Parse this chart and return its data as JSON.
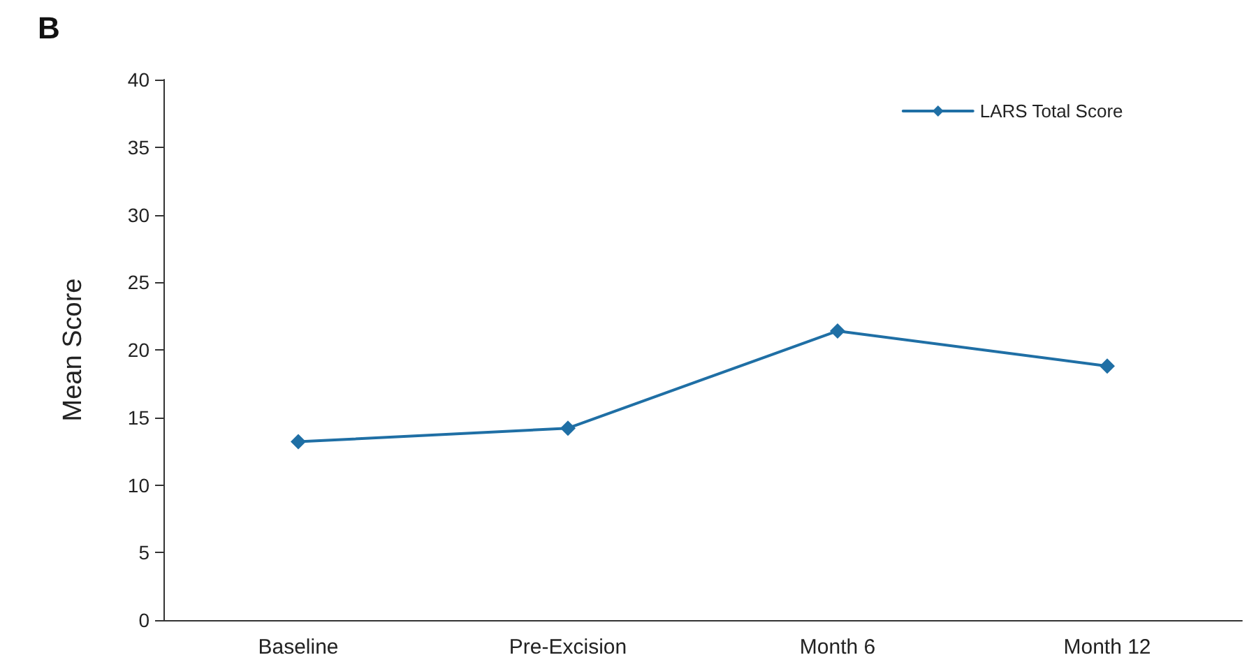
{
  "chart_data": {
    "type": "line",
    "title": "B",
    "ylabel": "Mean Score",
    "categories": [
      "Baseline",
      "Pre-Excision",
      "Month 6",
      "Month 12"
    ],
    "series": [
      {
        "name": "LARS Total Score",
        "color": "#1f6fa5",
        "values": [
          13.2,
          14.2,
          21.4,
          18.8
        ]
      }
    ],
    "ylim": [
      0,
      40
    ],
    "yticks": [
      0,
      5,
      10,
      15,
      20,
      25,
      30,
      35,
      40
    ],
    "grid": false,
    "legend": "top right",
    "marker": "diamond",
    "line_style": "solid"
  }
}
